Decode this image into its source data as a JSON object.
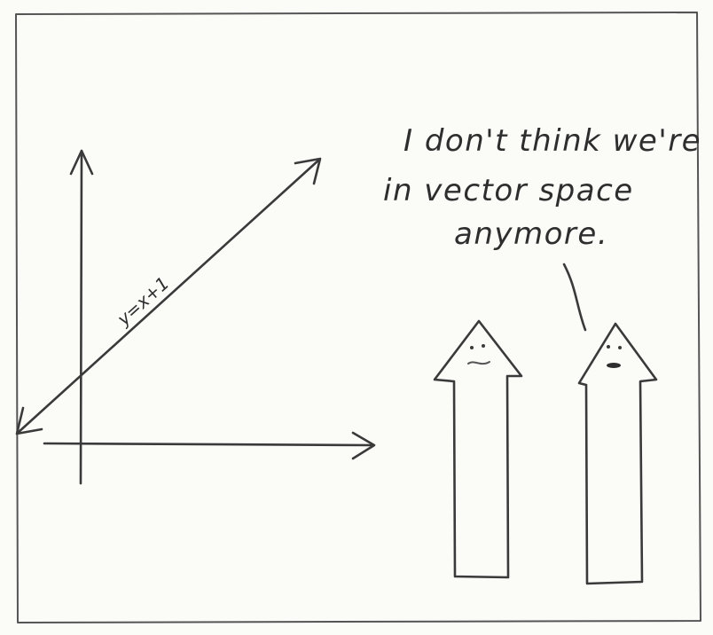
{
  "panel": {
    "speech_lines": [
      "I don't think we're",
      "in vector space",
      "anymore."
    ],
    "line_label": "y=x+1",
    "paper_color": "#fdfdfb",
    "pencil_color": "#3a3a3a"
  }
}
